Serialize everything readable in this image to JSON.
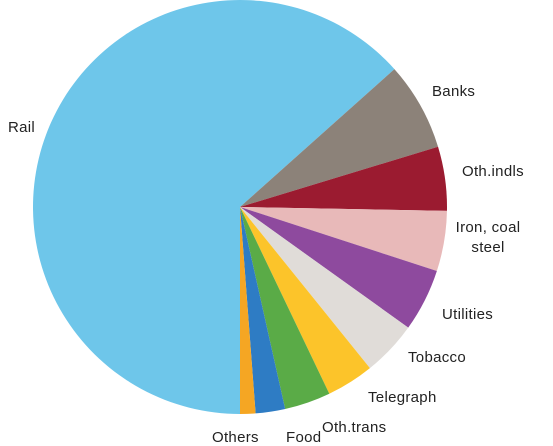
{
  "chart_data": {
    "type": "pie",
    "categories": [
      "Rail",
      "Banks",
      "Oth.indls",
      "Iron, coal steel",
      "Utilities",
      "Tobacco",
      "Telegraph",
      "Oth.trans",
      "Food",
      "Others"
    ],
    "values": [
      63.4,
      6.9,
      5.0,
      4.7,
      4.9,
      4.3,
      3.7,
      3.6,
      2.3,
      1.2
    ],
    "colors": [
      "#6ec6ea",
      "#8c8279",
      "#9b1b30",
      "#e8b9b9",
      "#8e4a9e",
      "#e0dcd8",
      "#fcc42a",
      "#5aab47",
      "#2e7cc4",
      "#f5a623"
    ]
  }
}
